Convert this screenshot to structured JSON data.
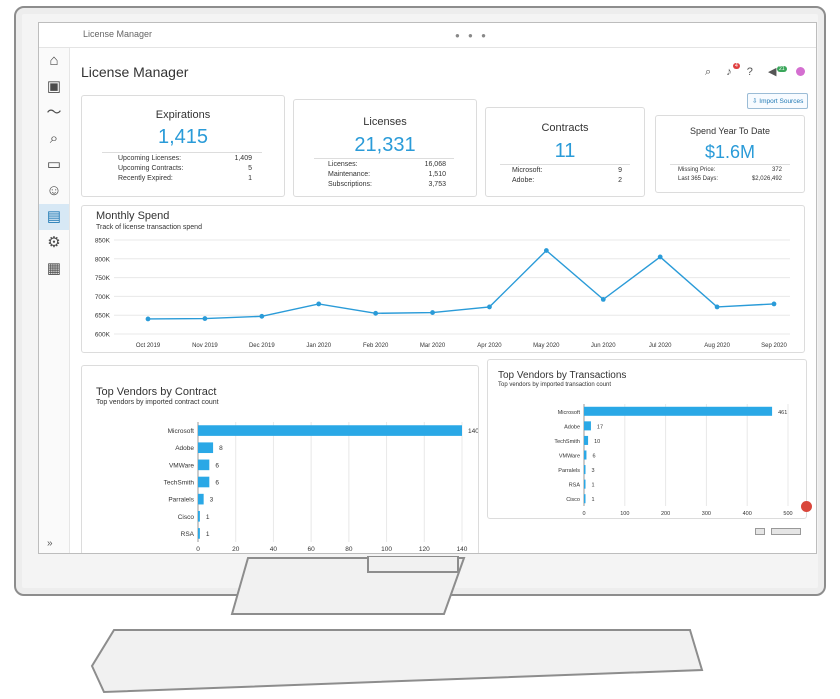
{
  "window": {
    "title": "License Manager"
  },
  "header": {
    "title": "License Manager",
    "import_label": "Import Sources",
    "notif_count": "4",
    "announce_count": "21"
  },
  "sidebar": {
    "items": [
      "home-icon",
      "monitor-icon",
      "activity-icon",
      "search-doc-icon",
      "desktop-icon",
      "users-icon",
      "license-icon",
      "settings-icon",
      "grid-icon"
    ],
    "expand": "»"
  },
  "cards": {
    "expirations": {
      "title": "Expirations",
      "value": "1,415",
      "rows": [
        {
          "label": "Upcoming Licenses:",
          "value": "1,409"
        },
        {
          "label": "Upcoming Contracts:",
          "value": "5"
        },
        {
          "label": "Recently Expired:",
          "value": "1"
        }
      ]
    },
    "licenses": {
      "title": "Licenses",
      "value": "21,331",
      "rows": [
        {
          "label": "Licenses:",
          "value": "16,068"
        },
        {
          "label": "Maintenance:",
          "value": "1,510"
        },
        {
          "label": "Subscriptions:",
          "value": "3,753"
        }
      ]
    },
    "contracts": {
      "title": "Contracts",
      "value": "11",
      "rows": [
        {
          "label": "Microsoft:",
          "value": "9"
        },
        {
          "label": "Adobe:",
          "value": "2"
        }
      ]
    },
    "spend": {
      "title": "Spend Year To Date",
      "value": "$1.6M",
      "rows": [
        {
          "label": "Missing Price:",
          "value": "372"
        },
        {
          "label": "Last 365 Days:",
          "value": "$2,026,492"
        }
      ]
    }
  },
  "monthly": {
    "title": "Monthly Spend",
    "subtitle": "Track of license transaction spend"
  },
  "vendors_contract": {
    "title": "Top Vendors by Contract",
    "subtitle": "Top vendors by imported contract count"
  },
  "vendors_tx": {
    "title": "Top Vendors by Transactions",
    "subtitle": "Top vendors by imported transaction count"
  },
  "colors": {
    "accent": "#2a9bd8",
    "bar": "#2aa8e6",
    "active_bg": "#d7e8f5"
  },
  "chart_data": [
    {
      "type": "line",
      "title": "Monthly Spend",
      "subtitle": "Track of license transaction spend",
      "categories": [
        "Oct 2019",
        "Nov 2019",
        "Dec 2019",
        "Jan 2020",
        "Feb 2020",
        "Mar 2020",
        "Apr 2020",
        "May 2020",
        "Jun 2020",
        "Jul 2020",
        "Aug 2020",
        "Sep 2020"
      ],
      "values": [
        640000,
        641000,
        647000,
        680000,
        655000,
        657000,
        672000,
        822000,
        692000,
        805000,
        672000,
        680000
      ],
      "yticks": [
        "850K",
        "800K",
        "750K",
        "700K",
        "650K",
        "600K"
      ],
      "ylim": [
        600000,
        850000
      ],
      "grid": true
    },
    {
      "type": "bar",
      "orientation": "horizontal",
      "title": "Top Vendors by Contract",
      "subtitle": "Top vendors by imported contract count",
      "categories": [
        "Microsoft",
        "Adobe",
        "VMWare",
        "TechSmith",
        "Parralels",
        "Cisco",
        "RSA"
      ],
      "values": [
        140,
        8,
        6,
        6,
        3,
        1,
        1
      ],
      "xticks": [
        "0",
        "20",
        "40",
        "60",
        "80",
        "100",
        "120",
        "140"
      ],
      "xlim": [
        0,
        140
      ],
      "grid": true
    },
    {
      "type": "bar",
      "orientation": "horizontal",
      "title": "Top Vendors by Transactions",
      "subtitle": "Top vendors by imported transaction count",
      "categories": [
        "Microsoft",
        "Adobe",
        "TechSmith",
        "VMWare",
        "Parralels",
        "RSA",
        "Cisco"
      ],
      "values": [
        461,
        17,
        10,
        6,
        3,
        1,
        1
      ],
      "xticks": [
        "0",
        "100",
        "200",
        "300",
        "400",
        "500"
      ],
      "xlim": [
        0,
        500
      ],
      "grid": true
    }
  ]
}
